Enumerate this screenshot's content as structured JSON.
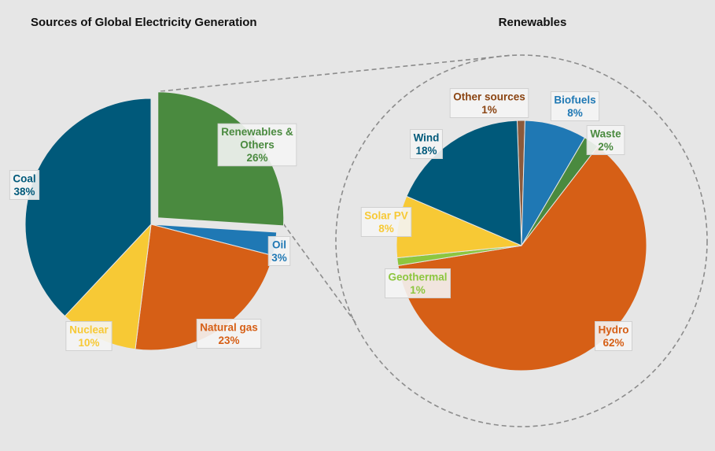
{
  "chart_data": [
    {
      "type": "pie",
      "title": "Sources of Global Electricity Generation",
      "categories": [
        "Renewables & Others",
        "Oil",
        "Natural gas",
        "Nuclear",
        "Coal"
      ],
      "values": [
        26,
        3,
        23,
        10,
        38
      ],
      "label_lines": [
        [
          "Renewables &",
          "Others",
          "26%"
        ],
        [
          "Oil",
          "3%"
        ],
        [
          "Natural gas",
          "23%"
        ],
        [
          "Nuclear",
          "10%"
        ],
        [
          "Coal",
          "38%"
        ]
      ],
      "colors": [
        "#4a8a3f",
        "#1f78b4",
        "#d65f16",
        "#f7c935",
        "#00597a"
      ],
      "label_colors": [
        "#4a8a3f",
        "#1f78b4",
        "#d65f16",
        "#f7c935",
        "#00597a"
      ],
      "exploded": "Renewables & Others",
      "legend": "none"
    },
    {
      "type": "pie",
      "title": "Renewables",
      "categories": [
        "Other sources",
        "Biofuels",
        "Waste",
        "Hydro",
        "Geothermal",
        "Solar PV",
        "Wind"
      ],
      "values": [
        1,
        8,
        2,
        62,
        1,
        8,
        18
      ],
      "label_lines": [
        [
          "Other sources",
          "1%"
        ],
        [
          "Biofuels",
          "8%"
        ],
        [
          "Waste",
          "2%"
        ],
        [
          "Hydro",
          "62%"
        ],
        [
          "Geothermal",
          "1%"
        ],
        [
          "Solar PV",
          "8%"
        ],
        [
          "Wind",
          "18%"
        ]
      ],
      "colors": [
        "#8b5a3c",
        "#1f78b4",
        "#4a8a3f",
        "#d65f16",
        "#8dc63f",
        "#f7c935",
        "#00597a"
      ],
      "label_colors": [
        "#8b4513",
        "#1f78b4",
        "#4a8a3f",
        "#d65f16",
        "#8dc63f",
        "#f7c935",
        "#00597a"
      ],
      "legend": "none"
    }
  ]
}
